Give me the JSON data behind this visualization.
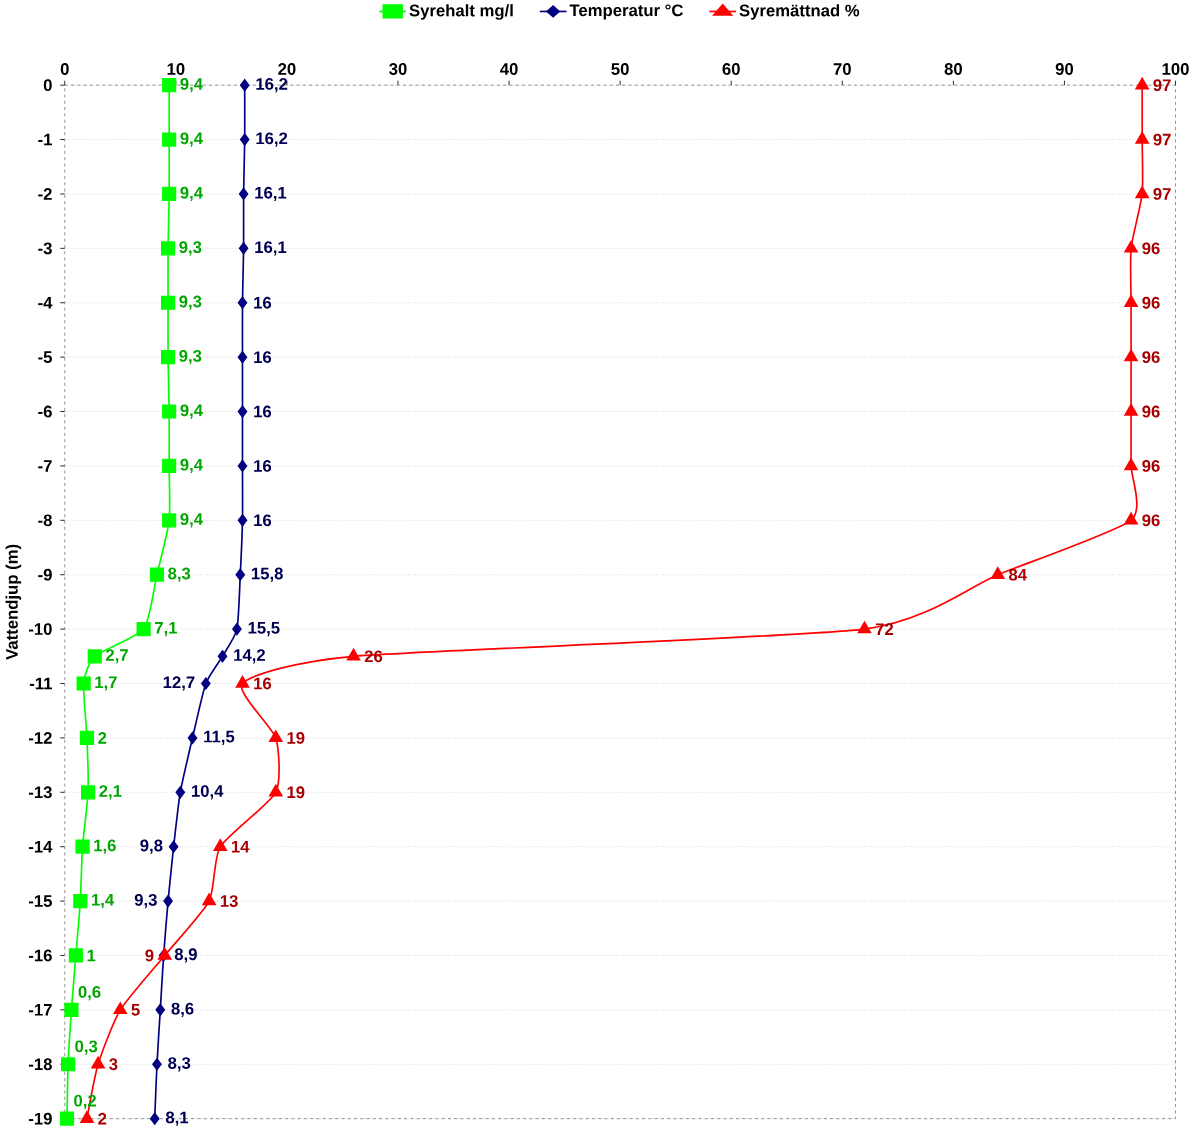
{
  "chart_data": {
    "type": "line",
    "orientation": "horizontal",
    "ylabel": "Vattendjup (m)",
    "xlim": [
      0,
      100
    ],
    "xticks": [
      0,
      10,
      20,
      30,
      40,
      50,
      60,
      70,
      80,
      90,
      100
    ],
    "ylim": [
      -19,
      0
    ],
    "yticks": [
      0,
      -1,
      -2,
      -3,
      -4,
      -5,
      -6,
      -7,
      -8,
      -9,
      -10,
      -11,
      -12,
      -13,
      -14,
      -15,
      -16,
      -17,
      -18,
      -19
    ],
    "grid": "y",
    "legend": "top",
    "series": [
      {
        "name": "Syrehalt mg/l",
        "color": "#00ff00",
        "marker": "square",
        "values": [
          9.4,
          9.4,
          9.4,
          9.3,
          9.3,
          9.3,
          9.4,
          9.4,
          9.4,
          8.3,
          7.1,
          2.7,
          1.7,
          2,
          2.1,
          1.6,
          1.4,
          1,
          0.6,
          0.3,
          0.2
        ],
        "x": [
          0,
          -1,
          -2,
          -3,
          -4,
          -5,
          -6,
          -7,
          -8,
          -9,
          -10,
          -10.5,
          -11,
          -12,
          -13,
          -14,
          -15,
          -16,
          -17,
          -18,
          -19
        ],
        "value_labels": [
          "9,4",
          "9,4",
          "9,4",
          "9,3",
          "9,3",
          "9,3",
          "9,4",
          "9,4",
          "9,4",
          "8,3",
          "7,1",
          "2,7",
          "1,7",
          "2",
          "2,1",
          "1,6",
          "1,4",
          "1",
          "0,6",
          "0,3",
          "0,2"
        ]
      },
      {
        "name": "Temperatur °C",
        "color": "#000080",
        "marker": "diamond",
        "values": [
          16.2,
          16.2,
          16.1,
          16.1,
          16,
          16,
          16,
          16,
          16,
          15.8,
          15.5,
          14.2,
          12.7,
          11.5,
          10.4,
          9.8,
          9.3,
          8.9,
          8.6,
          8.3,
          8.1
        ],
        "x": [
          0,
          -1,
          -2,
          -3,
          -4,
          -5,
          -6,
          -7,
          -8,
          -9,
          -10,
          -10.5,
          -11,
          -12,
          -13,
          -14,
          -15,
          -16,
          -17,
          -18,
          -19
        ],
        "value_labels": [
          "16,2",
          "16,2",
          "16,1",
          "16,1",
          "16",
          "16",
          "16",
          "16",
          "16",
          "15,8",
          "15,5",
          "14,2",
          "12,7",
          "11,5",
          "10,4",
          "9,8",
          "9,3",
          "8,9",
          "8,6",
          "8,3",
          "8,1"
        ]
      },
      {
        "name": "Syremättnad %",
        "color": "#ff0000",
        "marker": "triangle",
        "values": [
          97,
          97,
          97,
          96,
          96,
          96,
          96,
          96,
          96,
          84,
          72,
          26,
          16,
          19,
          19,
          14,
          13,
          9,
          5,
          3,
          2
        ],
        "x": [
          0,
          -1,
          -2,
          -3,
          -4,
          -5,
          -6,
          -7,
          -8,
          -9,
          -10,
          -10.5,
          -11,
          -12,
          -13,
          -14,
          -15,
          -16,
          -17,
          -18,
          -19
        ],
        "value_labels": [
          "97",
          "97",
          "97",
          "96",
          "96",
          "96",
          "96",
          "96",
          "96",
          "84",
          "72",
          "26",
          "16",
          "19",
          "19",
          "14",
          "13",
          "9",
          "5",
          "3",
          "2"
        ]
      }
    ]
  }
}
